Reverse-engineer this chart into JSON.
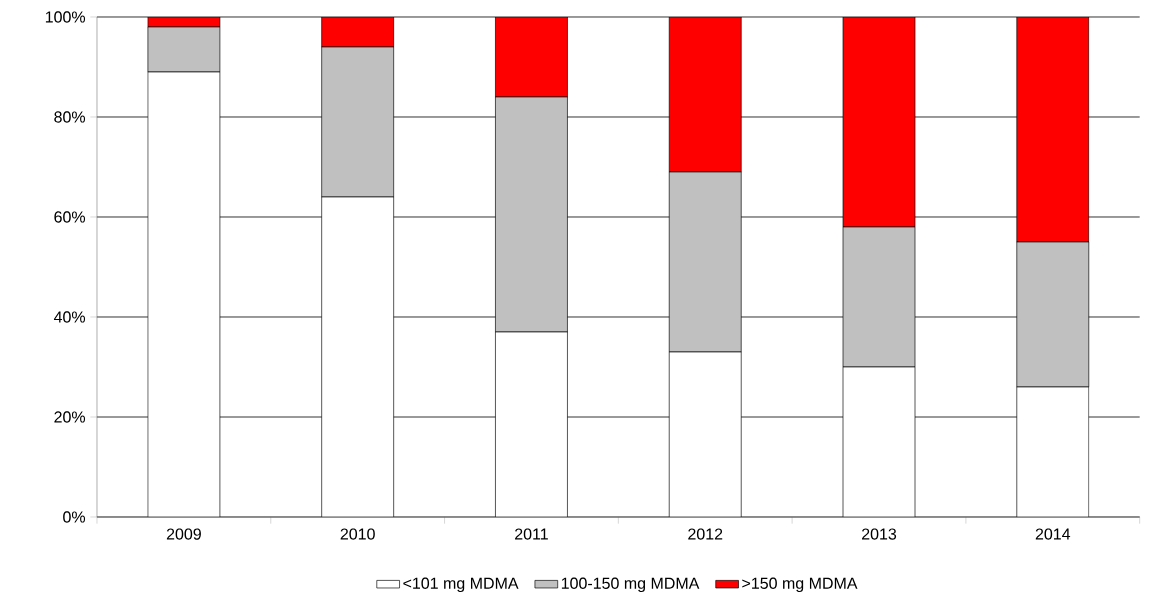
{
  "chart_data": {
    "type": "bar",
    "stacked": true,
    "categories": [
      "2009",
      "2010",
      "2011",
      "2012",
      "2013",
      "2014"
    ],
    "series": [
      {
        "name": "<101 mg MDMA",
        "color": "#ffffff",
        "values": [
          89,
          64,
          37,
          33,
          30,
          26
        ]
      },
      {
        "name": "100-150 mg MDMA",
        "color": "#c0c0c0",
        "values": [
          9,
          30,
          47,
          36,
          28,
          29
        ]
      },
      {
        "name": ">150 mg MDMA",
        "color": "#ff0000",
        "values": [
          2,
          6,
          16,
          31,
          42,
          45
        ]
      }
    ],
    "ylim": [
      0,
      100
    ],
    "yticks": [
      {
        "value": 0,
        "label": "0%"
      },
      {
        "value": 20,
        "label": "20%"
      },
      {
        "value": 40,
        "label": "40%"
      },
      {
        "value": 60,
        "label": "60%"
      },
      {
        "value": 80,
        "label": "80%"
      },
      {
        "value": 100,
        "label": "100%"
      }
    ],
    "grid": "y",
    "legend": "bottom"
  }
}
